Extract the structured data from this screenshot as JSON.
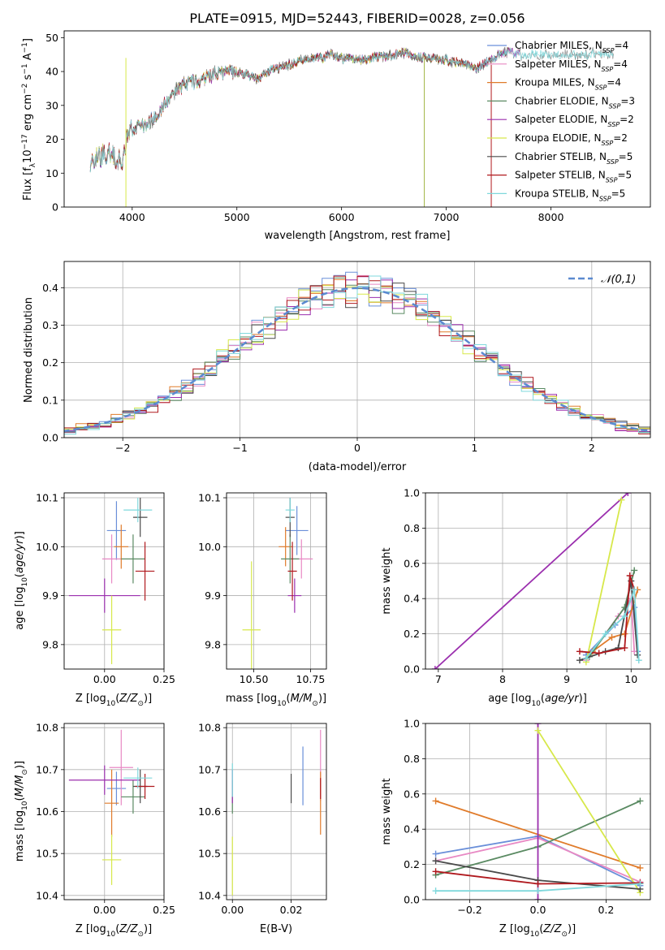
{
  "title": "PLATE=0915, MJD=52443, FIBERID=0028, z=0.056",
  "models": [
    {
      "label": "Chabrier MILES, N_SSP=4",
      "imf": "Chabrier MILES",
      "n": "4",
      "color": "#6a8fd9"
    },
    {
      "label": "Salpeter MILES, N_SSP=4",
      "imf": "Salpeter MILES",
      "n": "4",
      "color": "#e889c4"
    },
    {
      "label": "Kroupa MILES, N_SSP=4",
      "imf": "Kroupa MILES",
      "n": "4",
      "color": "#e07b2a"
    },
    {
      "label": "Chabrier ELODIE, N_SSP=3",
      "imf": "Chabrier ELODIE",
      "n": "3",
      "color": "#5a8a62"
    },
    {
      "label": "Salpeter ELODIE, N_SSP=2",
      "imf": "Salpeter ELODIE",
      "n": "2",
      "color": "#9b2fae"
    },
    {
      "label": "Kroupa ELODIE, N_SSP=2",
      "imf": "Kroupa ELODIE",
      "n": "2",
      "color": "#d7e84a"
    },
    {
      "label": "Chabrier STELIB, N_SSP=5",
      "imf": "Chabrier STELIB",
      "n": "5",
      "color": "#4a4a4a"
    },
    {
      "label": "Salpeter STELIB, N_SSP=5",
      "imf": "Salpeter STELIB",
      "n": "5",
      "color": "#b0191e"
    },
    {
      "label": "Kroupa STELIB, N_SSP=5",
      "imf": "Kroupa STELIB",
      "n": "5",
      "color": "#7fd8dc"
    }
  ],
  "chart_data": [
    {
      "id": "spectrum",
      "type": "line",
      "title": "PLATE=0915, MJD=52443, FIBERID=0028, z=0.056",
      "xlabel": "wavelength [Angstrom, rest frame]",
      "ylabel": "Flux [f_λ 10^-17 erg cm^-2 s^-1 A^-1]",
      "xlim": [
        3350,
        8950
      ],
      "ylim": [
        0,
        52
      ],
      "xticks": [
        4000,
        5000,
        6000,
        7000,
        8000
      ],
      "yticks": [
        0,
        10,
        20,
        30,
        40,
        50
      ],
      "legend": "top-right",
      "grid": false,
      "envelope_x": [
        3600,
        3700,
        3800,
        3900,
        3950,
        4000,
        4100,
        4200,
        4300,
        4400,
        4500,
        4600,
        4700,
        4800,
        4900,
        5000,
        5100,
        5200,
        5300,
        5400,
        5500,
        5600,
        5700,
        5800,
        5900,
        6000,
        6200,
        6400,
        6600,
        6800,
        7000,
        7200,
        7300,
        7400,
        7500,
        7600,
        7700
      ],
      "envelope_y": [
        14,
        15,
        16,
        13,
        20,
        23,
        24,
        26,
        30,
        34,
        36,
        37,
        38,
        39,
        40,
        40,
        39,
        38,
        40,
        41,
        42,
        43,
        44,
        44,
        45,
        44,
        43.5,
        44.5,
        45.5,
        44,
        43.5,
        42,
        41,
        43,
        45,
        46,
        45
      ]
    },
    {
      "id": "residuals",
      "type": "bar",
      "xlabel": "(data-model)/error",
      "ylabel": "Normed distribution",
      "xlim": [
        -2.5,
        2.5
      ],
      "ylim": [
        0,
        0.47
      ],
      "xticks": [
        -2,
        -1,
        0,
        1,
        2
      ],
      "yticks": [
        0.0,
        0.1,
        0.2,
        0.3,
        0.4
      ],
      "bin_width": 0.1,
      "grid": true,
      "legend": "top-right",
      "reference": {
        "label": "𝒩(0,1)",
        "mean": 0,
        "sigma": 1,
        "color": "#5b8ad0"
      }
    },
    {
      "id": "age_vs_Z",
      "type": "scatter",
      "xlabel": "Z [log10(Z/Z☉)]",
      "ylabel": "age  [log10(age/yr)]",
      "xlim": [
        -0.17,
        0.25
      ],
      "ylim": [
        9.75,
        10.11
      ],
      "xticks": [
        0.0,
        0.25
      ],
      "yticks": [
        9.8,
        9.9,
        10.0,
        10.1
      ],
      "grid": true,
      "points": [
        {
          "x": 0.05,
          "y": 10.033,
          "ex": 0.04,
          "ey": 0.06
        },
        {
          "x": 0.03,
          "y": 9.975,
          "ex": 0.04,
          "ey": 0.05
        },
        {
          "x": 0.07,
          "y": 10.0,
          "ex": 0.03,
          "ey": 0.045
        },
        {
          "x": 0.12,
          "y": 9.975,
          "ex": 0.05,
          "ey": 0.05
        },
        {
          "x": 0.0,
          "y": 9.9,
          "ex": 0.15,
          "ey": 0.035
        },
        {
          "x": 0.03,
          "y": 9.83,
          "ex": 0.04,
          "ey": 0.07
        },
        {
          "x": 0.15,
          "y": 10.06,
          "ex": 0.03,
          "ey": 0.04
        },
        {
          "x": 0.17,
          "y": 9.95,
          "ex": 0.04,
          "ey": 0.06
        },
        {
          "x": 0.14,
          "y": 10.075,
          "ex": 0.06,
          "ey": 0.025
        }
      ]
    },
    {
      "id": "age_vs_mass",
      "type": "scatter",
      "xlabel": "mass [log10(M/M☉)]",
      "ylabel": "",
      "xlim": [
        10.38,
        10.82
      ],
      "ylim": [
        9.75,
        10.11
      ],
      "xticks": [
        10.5,
        10.75
      ],
      "yticks": [
        9.8,
        9.9,
        10.0,
        10.1
      ],
      "grid": true,
      "points": [
        {
          "x": 10.69,
          "y": 10.033,
          "ex": 0.05,
          "ey": 0.05
        },
        {
          "x": 10.71,
          "y": 9.975,
          "ex": 0.05,
          "ey": 0.04
        },
        {
          "x": 10.64,
          "y": 10.0,
          "ex": 0.03,
          "ey": 0.04
        },
        {
          "x": 10.66,
          "y": 9.975,
          "ex": 0.04,
          "ey": 0.05
        },
        {
          "x": 10.68,
          "y": 9.9,
          "ex": 0.03,
          "ey": 0.035
        },
        {
          "x": 10.49,
          "y": 9.83,
          "ex": 0.04,
          "ey": 0.14
        },
        {
          "x": 10.66,
          "y": 10.06,
          "ex": 0.02,
          "ey": 0.04
        },
        {
          "x": 10.67,
          "y": 9.95,
          "ex": 0.02,
          "ey": 0.06
        },
        {
          "x": 10.66,
          "y": 10.075,
          "ex": 0.02,
          "ey": 0.025
        }
      ]
    },
    {
      "id": "mass_weight_vs_age",
      "type": "line",
      "xlabel": "age  [log10(age/yr)]",
      "ylabel": "mass weight",
      "xlim": [
        6.8,
        10.3
      ],
      "ylim": [
        0,
        1
      ],
      "xticks": [
        7,
        8,
        9,
        10
      ],
      "yticks": [
        0.0,
        0.2,
        0.4,
        0.6,
        0.8,
        1.0
      ],
      "grid": true,
      "series": [
        {
          "x": [
            9.3,
            9.75,
            10.05,
            10.1
          ],
          "y": [
            0.08,
            0.25,
            0.35,
            0.1
          ]
        },
        {
          "x": [
            9.3,
            9.8,
            10.0,
            10.05
          ],
          "y": [
            0.05,
            0.3,
            0.4,
            0.1
          ]
        },
        {
          "x": [
            9.4,
            9.7,
            9.9,
            10.1
          ],
          "y": [
            0.1,
            0.18,
            0.2,
            0.45
          ]
        },
        {
          "x": [
            9.35,
            9.9,
            10.05
          ],
          "y": [
            0.07,
            0.35,
            0.56
          ]
        },
        {
          "x": [
            6.95,
            9.95
          ],
          "y": [
            0.0,
            1.0
          ]
        },
        {
          "x": [
            9.3,
            9.85
          ],
          "y": [
            0.04,
            0.96
          ]
        },
        {
          "x": [
            9.2,
            9.6,
            9.8,
            10.0,
            10.1
          ],
          "y": [
            0.05,
            0.1,
            0.12,
            0.5,
            0.08
          ]
        },
        {
          "x": [
            9.2,
            9.5,
            9.9,
            9.98,
            10.05
          ],
          "y": [
            0.1,
            0.09,
            0.12,
            0.53,
            0.45
          ]
        },
        {
          "x": [
            9.3,
            9.6,
            9.9,
            10.05,
            10.12
          ],
          "y": [
            0.06,
            0.2,
            0.3,
            0.45,
            0.05
          ]
        }
      ]
    },
    {
      "id": "mass_vs_Z",
      "type": "scatter",
      "xlabel": "Z [log10(Z/Z☉)]",
      "ylabel": "mass [log10(M/M☉)]",
      "xlim": [
        -0.17,
        0.25
      ],
      "ylim": [
        10.39,
        10.81
      ],
      "xticks": [
        0.0,
        0.25
      ],
      "yticks": [
        10.4,
        10.5,
        10.6,
        10.7,
        10.8
      ],
      "grid": true,
      "points": [
        {
          "x": 0.05,
          "y": 10.655,
          "ex": 0.04,
          "ey": 0.04
        },
        {
          "x": 0.07,
          "y": 10.705,
          "ex": 0.05,
          "ey": 0.09
        },
        {
          "x": 0.03,
          "y": 10.62,
          "ex": 0.03,
          "ey": 0.08
        },
        {
          "x": 0.12,
          "y": 10.635,
          "ex": 0.05,
          "ey": 0.04
        },
        {
          "x": 0.0,
          "y": 10.675,
          "ex": 0.15,
          "ey": 0.035
        },
        {
          "x": 0.03,
          "y": 10.485,
          "ex": 0.04,
          "ey": 0.06
        },
        {
          "x": 0.15,
          "y": 10.66,
          "ex": 0.03,
          "ey": 0.04
        },
        {
          "x": 0.17,
          "y": 10.66,
          "ex": 0.04,
          "ey": 0.03
        },
        {
          "x": 0.14,
          "y": 10.68,
          "ex": 0.06,
          "ey": 0.025
        }
      ]
    },
    {
      "id": "mass_vs_ebv",
      "type": "scatter",
      "xlabel": "E(B-V)",
      "ylabel": "",
      "xlim": [
        -0.002,
        0.032
      ],
      "ylim": [
        10.39,
        10.81
      ],
      "xticks": [
        0.0,
        0.02
      ],
      "yticks": [
        10.4,
        10.5,
        10.6,
        10.7,
        10.8
      ],
      "grid": true,
      "points": [
        {
          "x": 0.024,
          "y": 10.685,
          "ex": 0,
          "ey": 0.07
        },
        {
          "x": 0.03,
          "y": 10.71,
          "ex": 0,
          "ey": 0.085
        },
        {
          "x": 0.03,
          "y": 10.62,
          "ex": 0,
          "ey": 0.075
        },
        {
          "x": 0.0,
          "y": 10.635,
          "ex": 0,
          "ey": 0.04
        },
        {
          "x": 0.0,
          "y": 10.66,
          "ex": 0,
          "ey": 0.04
        },
        {
          "x": 0.0,
          "y": 10.47,
          "ex": 0,
          "ey": 0.07
        },
        {
          "x": 0.02,
          "y": 10.655,
          "ex": 0,
          "ey": 0.035
        },
        {
          "x": 0.03,
          "y": 10.655,
          "ex": 0,
          "ey": 0.025
        },
        {
          "x": 0.0,
          "y": 10.675,
          "ex": 0,
          "ey": 0.04
        }
      ]
    },
    {
      "id": "mass_weight_vs_Z",
      "type": "line",
      "xlabel": "Z [log10(Z/Z☉)]",
      "ylabel": "mass weight",
      "xlim": [
        -0.33,
        0.33
      ],
      "ylim": [
        0,
        1
      ],
      "xticks": [
        -0.2,
        0.0,
        0.2
      ],
      "yticks": [
        0.0,
        0.2,
        0.4,
        0.6,
        0.8,
        1.0
      ],
      "grid": true,
      "series": [
        {
          "x": [
            -0.3,
            0.0,
            0.3
          ],
          "y": [
            0.26,
            0.36,
            0.08
          ]
        },
        {
          "x": [
            -0.3,
            0.0,
            0.3
          ],
          "y": [
            0.22,
            0.35,
            0.1
          ]
        },
        {
          "x": [
            -0.3,
            0.3
          ],
          "y": [
            0.56,
            0.18
          ]
        },
        {
          "x": [
            -0.3,
            0.0,
            0.3
          ],
          "y": [
            0.14,
            0.3,
            0.56
          ]
        },
        {
          "x": [
            0.0,
            0.0
          ],
          "y": [
            0.0,
            1.0
          ]
        },
        {
          "x": [
            0.0,
            0.3
          ],
          "y": [
            0.96,
            0.04
          ]
        },
        {
          "x": [
            -0.3,
            0.0,
            0.3
          ],
          "y": [
            0.22,
            0.11,
            0.06
          ]
        },
        {
          "x": [
            -0.3,
            0.0,
            0.3
          ],
          "y": [
            0.16,
            0.09,
            0.095
          ]
        },
        {
          "x": [
            -0.3,
            0.0,
            0.3
          ],
          "y": [
            0.05,
            0.05,
            0.09
          ]
        }
      ]
    }
  ]
}
